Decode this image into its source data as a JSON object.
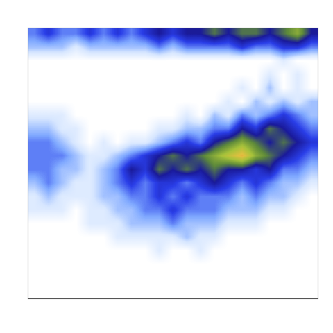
{
  "chart_data": {
    "type": "heatmap",
    "tick_labels": false,
    "zlim": [
      0,
      10
    ],
    "cells": [
      [
        3,
        4,
        3,
        3,
        4,
        3,
        4,
        3,
        4,
        5,
        4,
        5,
        5,
        6,
        5,
        6,
        6,
        5,
        6,
        7,
        5
      ],
      [
        2,
        2,
        2,
        1,
        2,
        2,
        2,
        2,
        2,
        3,
        2,
        3,
        3,
        3,
        3,
        4,
        3,
        3,
        4,
        4,
        3
      ],
      [
        0,
        0,
        0,
        0,
        0,
        0,
        0,
        0,
        0,
        0,
        0,
        0,
        0,
        0,
        0,
        0,
        0,
        0,
        1,
        0,
        0
      ],
      [
        0,
        0,
        0,
        0,
        0,
        0,
        0,
        0,
        0,
        0,
        0,
        0,
        0,
        0,
        0,
        0,
        0,
        1,
        0,
        1,
        0
      ],
      [
        0,
        0,
        0,
        0,
        0,
        0,
        0,
        0,
        0,
        0,
        0,
        0,
        0,
        0,
        0,
        1,
        0,
        2,
        0,
        1,
        0
      ],
      [
        0,
        0,
        0,
        0,
        0,
        0,
        0,
        0,
        0,
        0,
        0,
        0,
        0,
        0,
        1,
        0,
        2,
        1,
        2,
        1,
        2
      ],
      [
        1,
        1,
        1,
        0,
        0,
        0,
        0,
        0,
        0,
        0,
        0,
        1,
        0,
        2,
        1,
        3,
        2,
        3,
        4,
        3,
        2
      ],
      [
        2,
        2,
        1,
        1,
        0,
        0,
        0,
        0,
        0,
        1,
        1,
        2,
        2,
        3,
        3,
        5,
        4,
        6,
        5,
        4,
        3
      ],
      [
        3,
        3,
        2,
        1,
        0,
        1,
        0,
        1,
        1,
        2,
        3,
        4,
        3,
        5,
        6,
        7,
        6,
        5,
        6,
        5,
        4
      ],
      [
        3,
        3,
        3,
        2,
        1,
        1,
        2,
        3,
        4,
        5,
        6,
        5,
        6,
        7,
        8,
        9,
        7,
        6,
        5,
        4,
        3
      ],
      [
        3,
        3,
        2,
        2,
        1,
        2,
        3,
        5,
        4,
        6,
        5,
        6,
        5,
        6,
        5,
        5,
        4,
        5,
        3,
        3,
        2
      ],
      [
        2,
        3,
        2,
        1,
        1,
        2,
        3,
        4,
        3,
        4,
        4,
        3,
        4,
        5,
        4,
        3,
        4,
        3,
        2,
        2,
        1
      ],
      [
        1,
        2,
        1,
        1,
        1,
        2,
        2,
        3,
        3,
        4,
        3,
        4,
        3,
        3,
        3,
        2,
        3,
        2,
        2,
        1,
        0
      ],
      [
        1,
        1,
        1,
        0,
        1,
        1,
        2,
        2,
        3,
        3,
        4,
        3,
        3,
        3,
        2,
        2,
        2,
        1,
        1,
        0,
        0
      ],
      [
        0,
        0,
        0,
        0,
        1,
        1,
        1,
        2,
        2,
        2,
        3,
        2,
        2,
        2,
        1,
        1,
        1,
        0,
        0,
        0,
        0
      ],
      [
        0,
        0,
        0,
        0,
        0,
        0,
        1,
        1,
        1,
        1,
        1,
        2,
        1,
        1,
        0,
        0,
        0,
        0,
        0,
        0,
        0
      ],
      [
        0,
        0,
        0,
        0,
        0,
        0,
        0,
        0,
        0,
        1,
        0,
        0,
        1,
        0,
        0,
        0,
        0,
        0,
        0,
        0,
        0
      ],
      [
        0,
        0,
        0,
        0,
        0,
        0,
        0,
        0,
        0,
        0,
        0,
        0,
        0,
        0,
        0,
        0,
        0,
        0,
        0,
        0,
        0
      ],
      [
        0,
        0,
        0,
        0,
        0,
        0,
        0,
        0,
        0,
        0,
        0,
        0,
        0,
        0,
        0,
        0,
        0,
        0,
        0,
        0,
        0
      ],
      [
        0,
        0,
        0,
        0,
        0,
        0,
        0,
        0,
        0,
        0,
        0,
        0,
        0,
        0,
        0,
        0,
        0,
        0,
        0,
        0,
        0
      ]
    ]
  }
}
